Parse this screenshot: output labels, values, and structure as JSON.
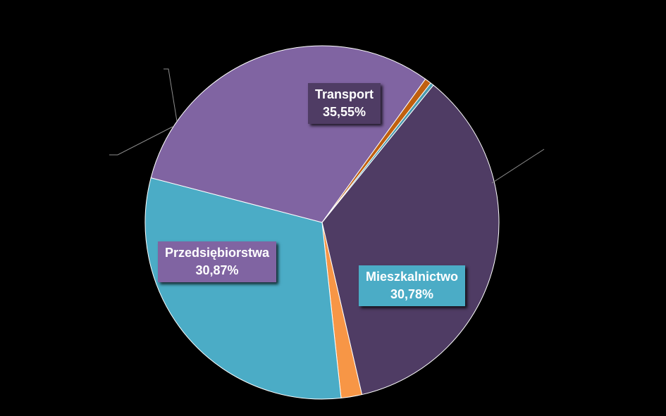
{
  "chart_data": {
    "type": "pie",
    "slices": [
      {
        "name": "Transport",
        "value": 35.55,
        "label": "35,55%",
        "color": "#4F3C64",
        "show_label": true
      },
      {
        "name": "",
        "value": 1.9,
        "label": "",
        "color": "#F79646",
        "show_label": false
      },
      {
        "name": "Mieszkalnictwo",
        "value": 30.78,
        "label": "30,78%",
        "color": "#4BACC6",
        "show_label": true
      },
      {
        "name": "Przedsiębiorstwa",
        "value": 30.87,
        "label": "30,87%",
        "color": "#8064A2",
        "show_label": true
      },
      {
        "name": "",
        "value": 0.6,
        "label": "",
        "color": "#C0600E",
        "show_label": false
      },
      {
        "name": "",
        "value": 0.3,
        "label": "",
        "color": "#4A9AAE",
        "show_label": false
      }
    ],
    "slice_border_color": "#FFFFFF",
    "label_fill_colors": {
      "Transport": "#4F3C64",
      "Mieszkalnictwo": "#4BACC6",
      "Przedsiębiorstwa": "#8064A2"
    },
    "legend": "none",
    "background": "#000000"
  }
}
